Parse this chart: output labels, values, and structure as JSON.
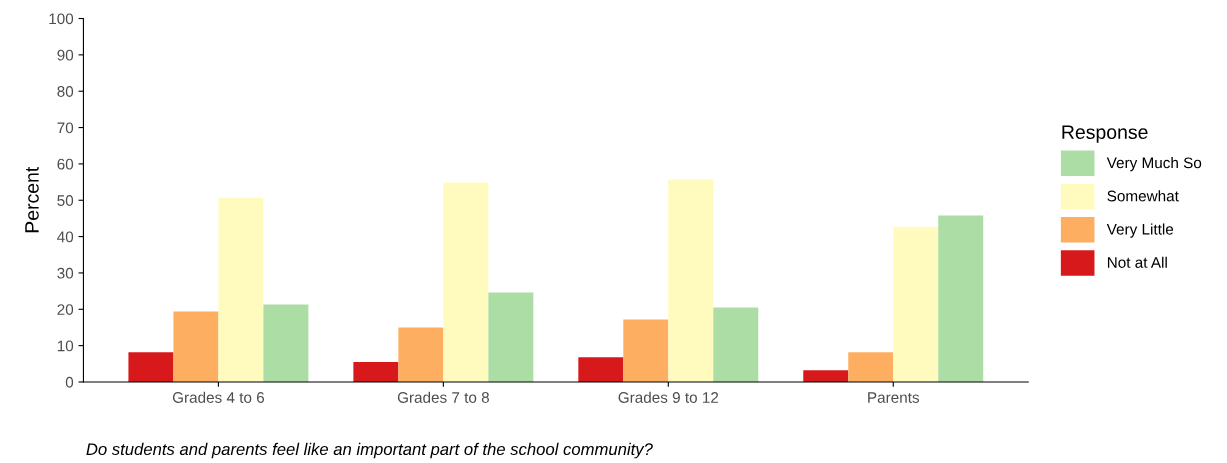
{
  "chart_data": {
    "type": "bar",
    "ylabel": "Percent",
    "legend_title": "Response",
    "legend": "right",
    "grid": false,
    "categories": [
      "Grades 4 to 6",
      "Grades 7 to 8",
      "Grades 9 to 12",
      "Parents"
    ],
    "series": [
      {
        "name": "Not at All",
        "color": "#d7191c",
        "values": [
          8.2,
          5.5,
          6.8,
          3.2
        ]
      },
      {
        "name": "Very Little",
        "color": "#fdae61",
        "values": [
          19.4,
          15.0,
          17.2,
          8.2
        ]
      },
      {
        "name": "Somewhat",
        "color": "#fffbbf",
        "values": [
          50.7,
          54.9,
          55.7,
          42.7
        ]
      },
      {
        "name": "Very Much So",
        "color": "#abdda4",
        "values": [
          21.3,
          24.6,
          20.5,
          45.8
        ]
      }
    ],
    "ylim": [
      0,
      100
    ],
    "yticks": [
      0,
      10,
      20,
      30,
      40,
      50,
      60,
      70,
      80,
      90,
      100
    ],
    "annotations": [
      "Do students and parents feel like an important part of the school community?"
    ]
  }
}
